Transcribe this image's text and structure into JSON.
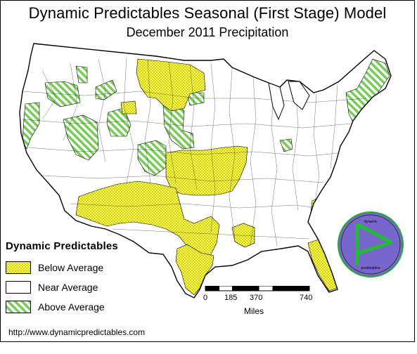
{
  "title": "Dynamic Predictables Seasonal (First Stage) Model",
  "subtitle": "December 2011 Precipitation",
  "legend": {
    "title": "Dynamic Predictables",
    "items": [
      {
        "label": "Below Average",
        "pattern": "dots",
        "color": "#ffff33"
      },
      {
        "label": "Near Average",
        "pattern": "none",
        "color": "#ffffff"
      },
      {
        "label": "Above Average",
        "pattern": "hatch",
        "color": "#77cc55"
      }
    ]
  },
  "scale": {
    "ticks": [
      "0",
      "185",
      "370",
      "740"
    ],
    "unit": "Miles"
  },
  "url": "http://www.dynamicpredictables.com",
  "logo": {
    "text_top": "dynamic",
    "text_bottom": "predictables",
    "circle_color": "#7766cc",
    "ring_color": "#22aa33",
    "mark_color": "#22bb33"
  },
  "colors": {
    "below": "#ffff33",
    "above": "#77cc55",
    "near": "#ffffff",
    "outline": "#000000"
  }
}
